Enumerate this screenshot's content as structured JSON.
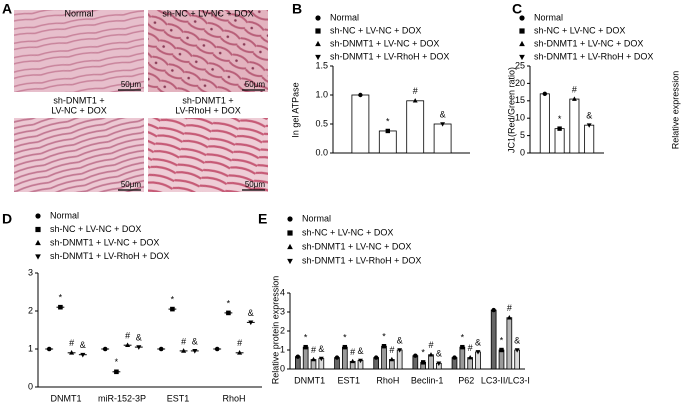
{
  "panel_labels": [
    "A",
    "B",
    "C",
    "D",
    "E"
  ],
  "images": [
    {
      "label": [
        "Normal"
      ],
      "scale": "50μm"
    },
    {
      "label": [
        "sh-NC + LV-NC + DOX"
      ],
      "scale": "50μm"
    },
    {
      "label": [
        "sh-DNMT1 +",
        "LV-NC + DOX"
      ],
      "scale": "50μm"
    },
    {
      "label": [
        "sh-DNMT1 +",
        "LV-RhoH + DOX"
      ],
      "scale": "50μm"
    }
  ],
  "chart_data": [
    {
      "type": "bar",
      "ylabel": "In gel ATPase",
      "categories": [
        null
      ],
      "ylim": [
        0,
        1.5
      ],
      "yticks": [
        {
          "value": 0,
          "label": "0.0"
        },
        {
          "value": 0.5,
          "label": "0.5"
        },
        {
          "value": 1,
          "label": "1.0"
        },
        {
          "value": 1.5,
          "label": "1.5"
        }
      ],
      "series": [
        {
          "name": "Normal",
          "marker": "circle",
          "color": "#ffffff",
          "values": [
            1.0
          ]
        },
        {
          "name": "sh-NC + LV-NC + DOX",
          "marker": "square",
          "color": "#ffffff",
          "values": [
            0.38
          ],
          "annotation": "*"
        },
        {
          "name": "sh-DNMT1 + LV-NC + DOX",
          "marker": "triangle",
          "color": "#ffffff",
          "values": [
            0.9
          ],
          "annotation": "#"
        },
        {
          "name": "sh-DNMT1 + LV-RhoH + DOX",
          "marker": "triangle-down",
          "color": "#ffffff",
          "values": [
            0.5
          ],
          "annotation": "&"
        }
      ]
    },
    {
      "type": "bar",
      "ylabel": "JC1(Red/Green ratio)",
      "categories": [
        null
      ],
      "ylim": [
        0,
        25
      ],
      "yticks": [
        0,
        5,
        10,
        15,
        20,
        25
      ],
      "series": [
        {
          "name": "Normal",
          "marker": "circle",
          "color": "#ffffff",
          "values": [
            17
          ]
        },
        {
          "name": "sh-NC + LV-NC + DOX",
          "marker": "square",
          "color": "#ffffff",
          "values": [
            7
          ],
          "annotation": "*"
        },
        {
          "name": "sh-DNMT1 + LV-NC + DOX",
          "marker": "triangle",
          "color": "#ffffff",
          "values": [
            15.5
          ],
          "annotation": "#"
        },
        {
          "name": "sh-DNMT1 + LV-RhoH + DOX",
          "marker": "triangle-down",
          "color": "#ffffff",
          "values": [
            8
          ],
          "annotation": "&"
        }
      ]
    },
    {
      "type": "dot",
      "ylabel": "Relative expression",
      "categories": [
        "DNMT1",
        "miR-152-3P",
        "EST1",
        "RhoH"
      ],
      "ylim": [
        0,
        3
      ],
      "yticks": [
        0,
        1,
        2,
        3
      ],
      "series": [
        {
          "name": "Normal",
          "marker": "circle",
          "color": "#000000",
          "values": [
            1.0,
            1.0,
            1.0,
            1.0
          ]
        },
        {
          "name": "sh-NC + LV-NC + DOX",
          "marker": "square",
          "color": "#000000",
          "values": [
            2.1,
            0.4,
            2.05,
            1.95
          ],
          "annotation": "*"
        },
        {
          "name": "sh-DNMT1 + LV-NC + DOX",
          "marker": "triangle",
          "color": "#000000",
          "values": [
            0.9,
            1.1,
            0.95,
            0.9
          ],
          "annotation": "#"
        },
        {
          "name": "sh-DNMT1 + LV-RhoH + DOX",
          "marker": "triangle-down",
          "color": "#000000",
          "values": [
            0.85,
            1.05,
            0.95,
            1.7
          ],
          "annotation": "&"
        }
      ]
    },
    {
      "type": "bar",
      "ylabel": "Relative protein expression",
      "categories": [
        "DNMT1",
        "EST1",
        "RhoH",
        "Beclin-1",
        "P62",
        "LC3-II/LC3-I"
      ],
      "ylim": [
        0,
        4
      ],
      "yticks": [
        0,
        1,
        2,
        3,
        4
      ],
      "series": [
        {
          "name": "Normal",
          "marker": "circle",
          "color": "#666666",
          "values": [
            0.65,
            0.6,
            0.6,
            0.7,
            0.6,
            3.1
          ]
        },
        {
          "name": "sh-NC + LV-NC + DOX",
          "marker": "square",
          "color": "#9a9a9a",
          "values": [
            1.15,
            1.15,
            1.2,
            0.35,
            1.15,
            1.0
          ],
          "annotation": "*"
        },
        {
          "name": "sh-DNMT1 + LV-NC + DOX",
          "marker": "triangle",
          "color": "#b8b8b8",
          "values": [
            0.5,
            0.4,
            0.5,
            0.75,
            0.6,
            2.7
          ],
          "annotation": "#"
        },
        {
          "name": "sh-DNMT1 + LV-RhoH + DOX",
          "marker": "triangle-down",
          "color": "#dcdcdc",
          "values": [
            0.55,
            0.45,
            1.0,
            0.3,
            0.9,
            1.0
          ],
          "annotation": "&"
        }
      ]
    }
  ]
}
